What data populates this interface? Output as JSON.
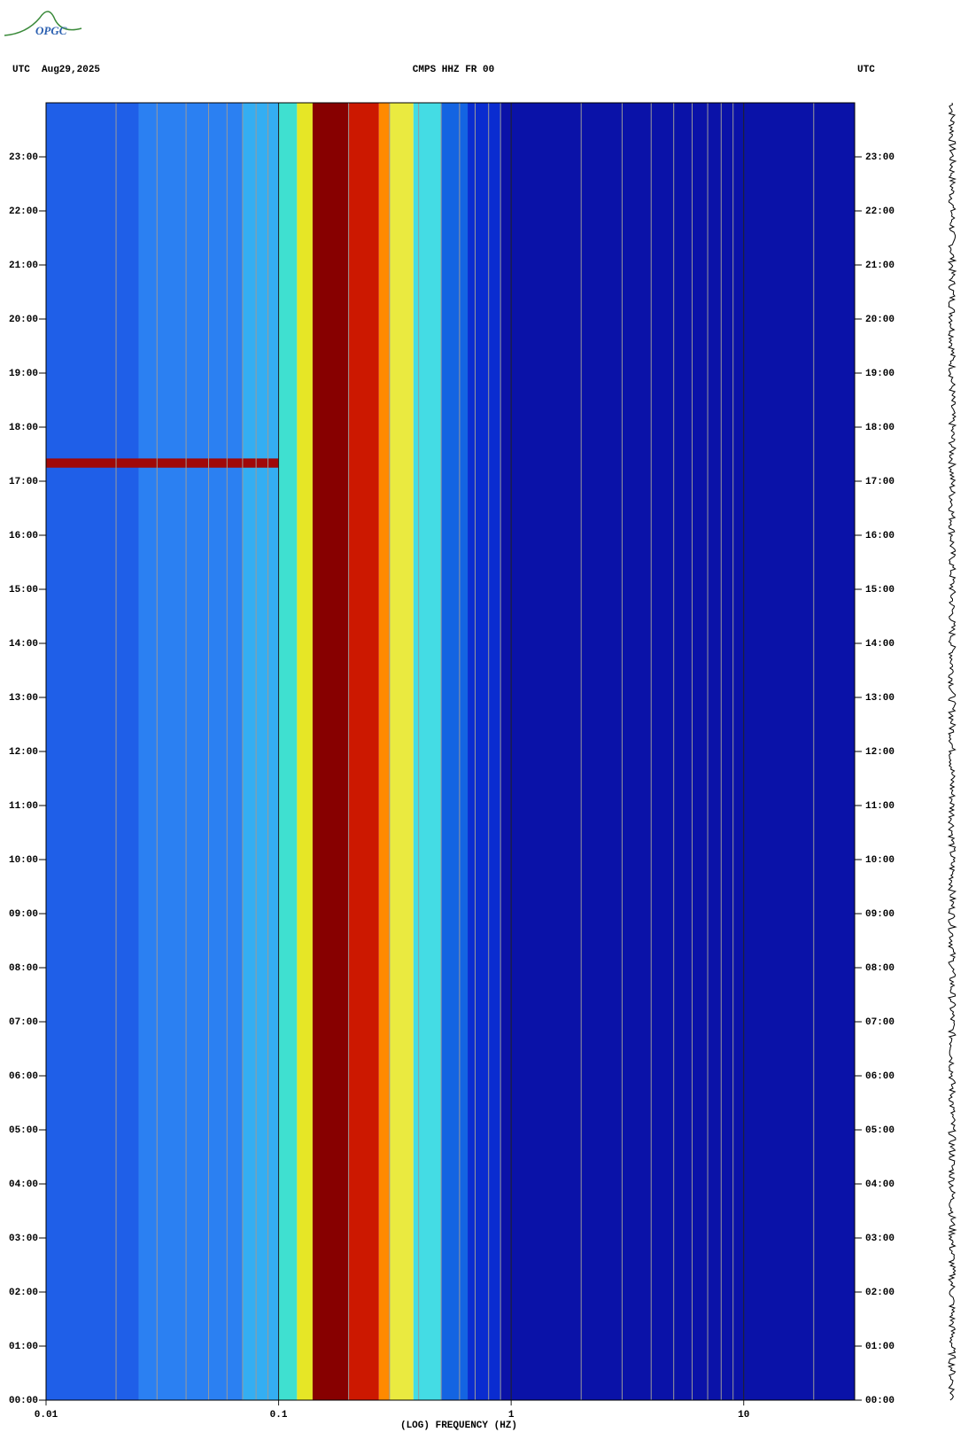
{
  "logo": "OPGC",
  "chart_data": {
    "type": "spectrogram",
    "title": "CMPS HHZ FR 00",
    "left_header": "UTC  Aug29,2025",
    "right_header": "UTC",
    "xlabel": "(LOG) FREQUENCY (HZ)",
    "xscale": "log",
    "xlim": [
      0.01,
      30
    ],
    "xticks": [
      0.01,
      0.1,
      1,
      10
    ],
    "xgrid": [
      0.02,
      0.03,
      0.04,
      0.05,
      0.06,
      0.07,
      0.08,
      0.09,
      0.2,
      0.3,
      0.4,
      0.5,
      0.6,
      0.7,
      0.8,
      0.9,
      2,
      3,
      4,
      5,
      6,
      7,
      8,
      9,
      20
    ],
    "ylim": [
      0,
      24
    ],
    "yticks": [
      {
        "value": 0,
        "label": "00:00"
      },
      {
        "value": 1,
        "label": "01:00"
      },
      {
        "value": 2,
        "label": "02:00"
      },
      {
        "value": 3,
        "label": "03:00"
      },
      {
        "value": 4,
        "label": "04:00"
      },
      {
        "value": 5,
        "label": "05:00"
      },
      {
        "value": 6,
        "label": "06:00"
      },
      {
        "value": 7,
        "label": "07:00"
      },
      {
        "value": 8,
        "label": "08:00"
      },
      {
        "value": 9,
        "label": "09:00"
      },
      {
        "value": 10,
        "label": "10:00"
      },
      {
        "value": 11,
        "label": "11:00"
      },
      {
        "value": 12,
        "label": "12:00"
      },
      {
        "value": 13,
        "label": "13:00"
      },
      {
        "value": 14,
        "label": "14:00"
      },
      {
        "value": 15,
        "label": "15:00"
      },
      {
        "value": 16,
        "label": "16:00"
      },
      {
        "value": 17,
        "label": "17:00"
      },
      {
        "value": 18,
        "label": "18:00"
      },
      {
        "value": 19,
        "label": "19:00"
      },
      {
        "value": 20,
        "label": "20:00"
      },
      {
        "value": 21,
        "label": "21:00"
      },
      {
        "value": 22,
        "label": "22:00"
      },
      {
        "value": 23,
        "label": "23:00"
      }
    ],
    "bands": [
      {
        "from": 0.01,
        "to": 0.025,
        "color": "#1f5fe8"
      },
      {
        "from": 0.025,
        "to": 0.07,
        "color": "#2b80f2"
      },
      {
        "from": 0.07,
        "to": 0.1,
        "color": "#34aef2"
      },
      {
        "from": 0.1,
        "to": 0.12,
        "color": "#3fe0d0"
      },
      {
        "from": 0.12,
        "to": 0.14,
        "color": "#e6e626"
      },
      {
        "from": 0.14,
        "to": 0.2,
        "color": "#870000"
      },
      {
        "from": 0.2,
        "to": 0.27,
        "color": "#cc1800"
      },
      {
        "from": 0.27,
        "to": 0.3,
        "color": "#ff8a00"
      },
      {
        "from": 0.3,
        "to": 0.38,
        "color": "#eaea40"
      },
      {
        "from": 0.38,
        "to": 0.5,
        "color": "#44dce4"
      },
      {
        "from": 0.5,
        "to": 0.65,
        "color": "#1464e2"
      },
      {
        "from": 0.65,
        "to": 0.9,
        "color": "#0a2cd0"
      },
      {
        "from": 0.9,
        "to": 30,
        "color": "#0a12a8"
      }
    ],
    "events": [
      {
        "t0": 17.25,
        "t1": 17.42,
        "f0": 0.01,
        "f1": 0.1,
        "color": "#a00808"
      }
    ]
  }
}
